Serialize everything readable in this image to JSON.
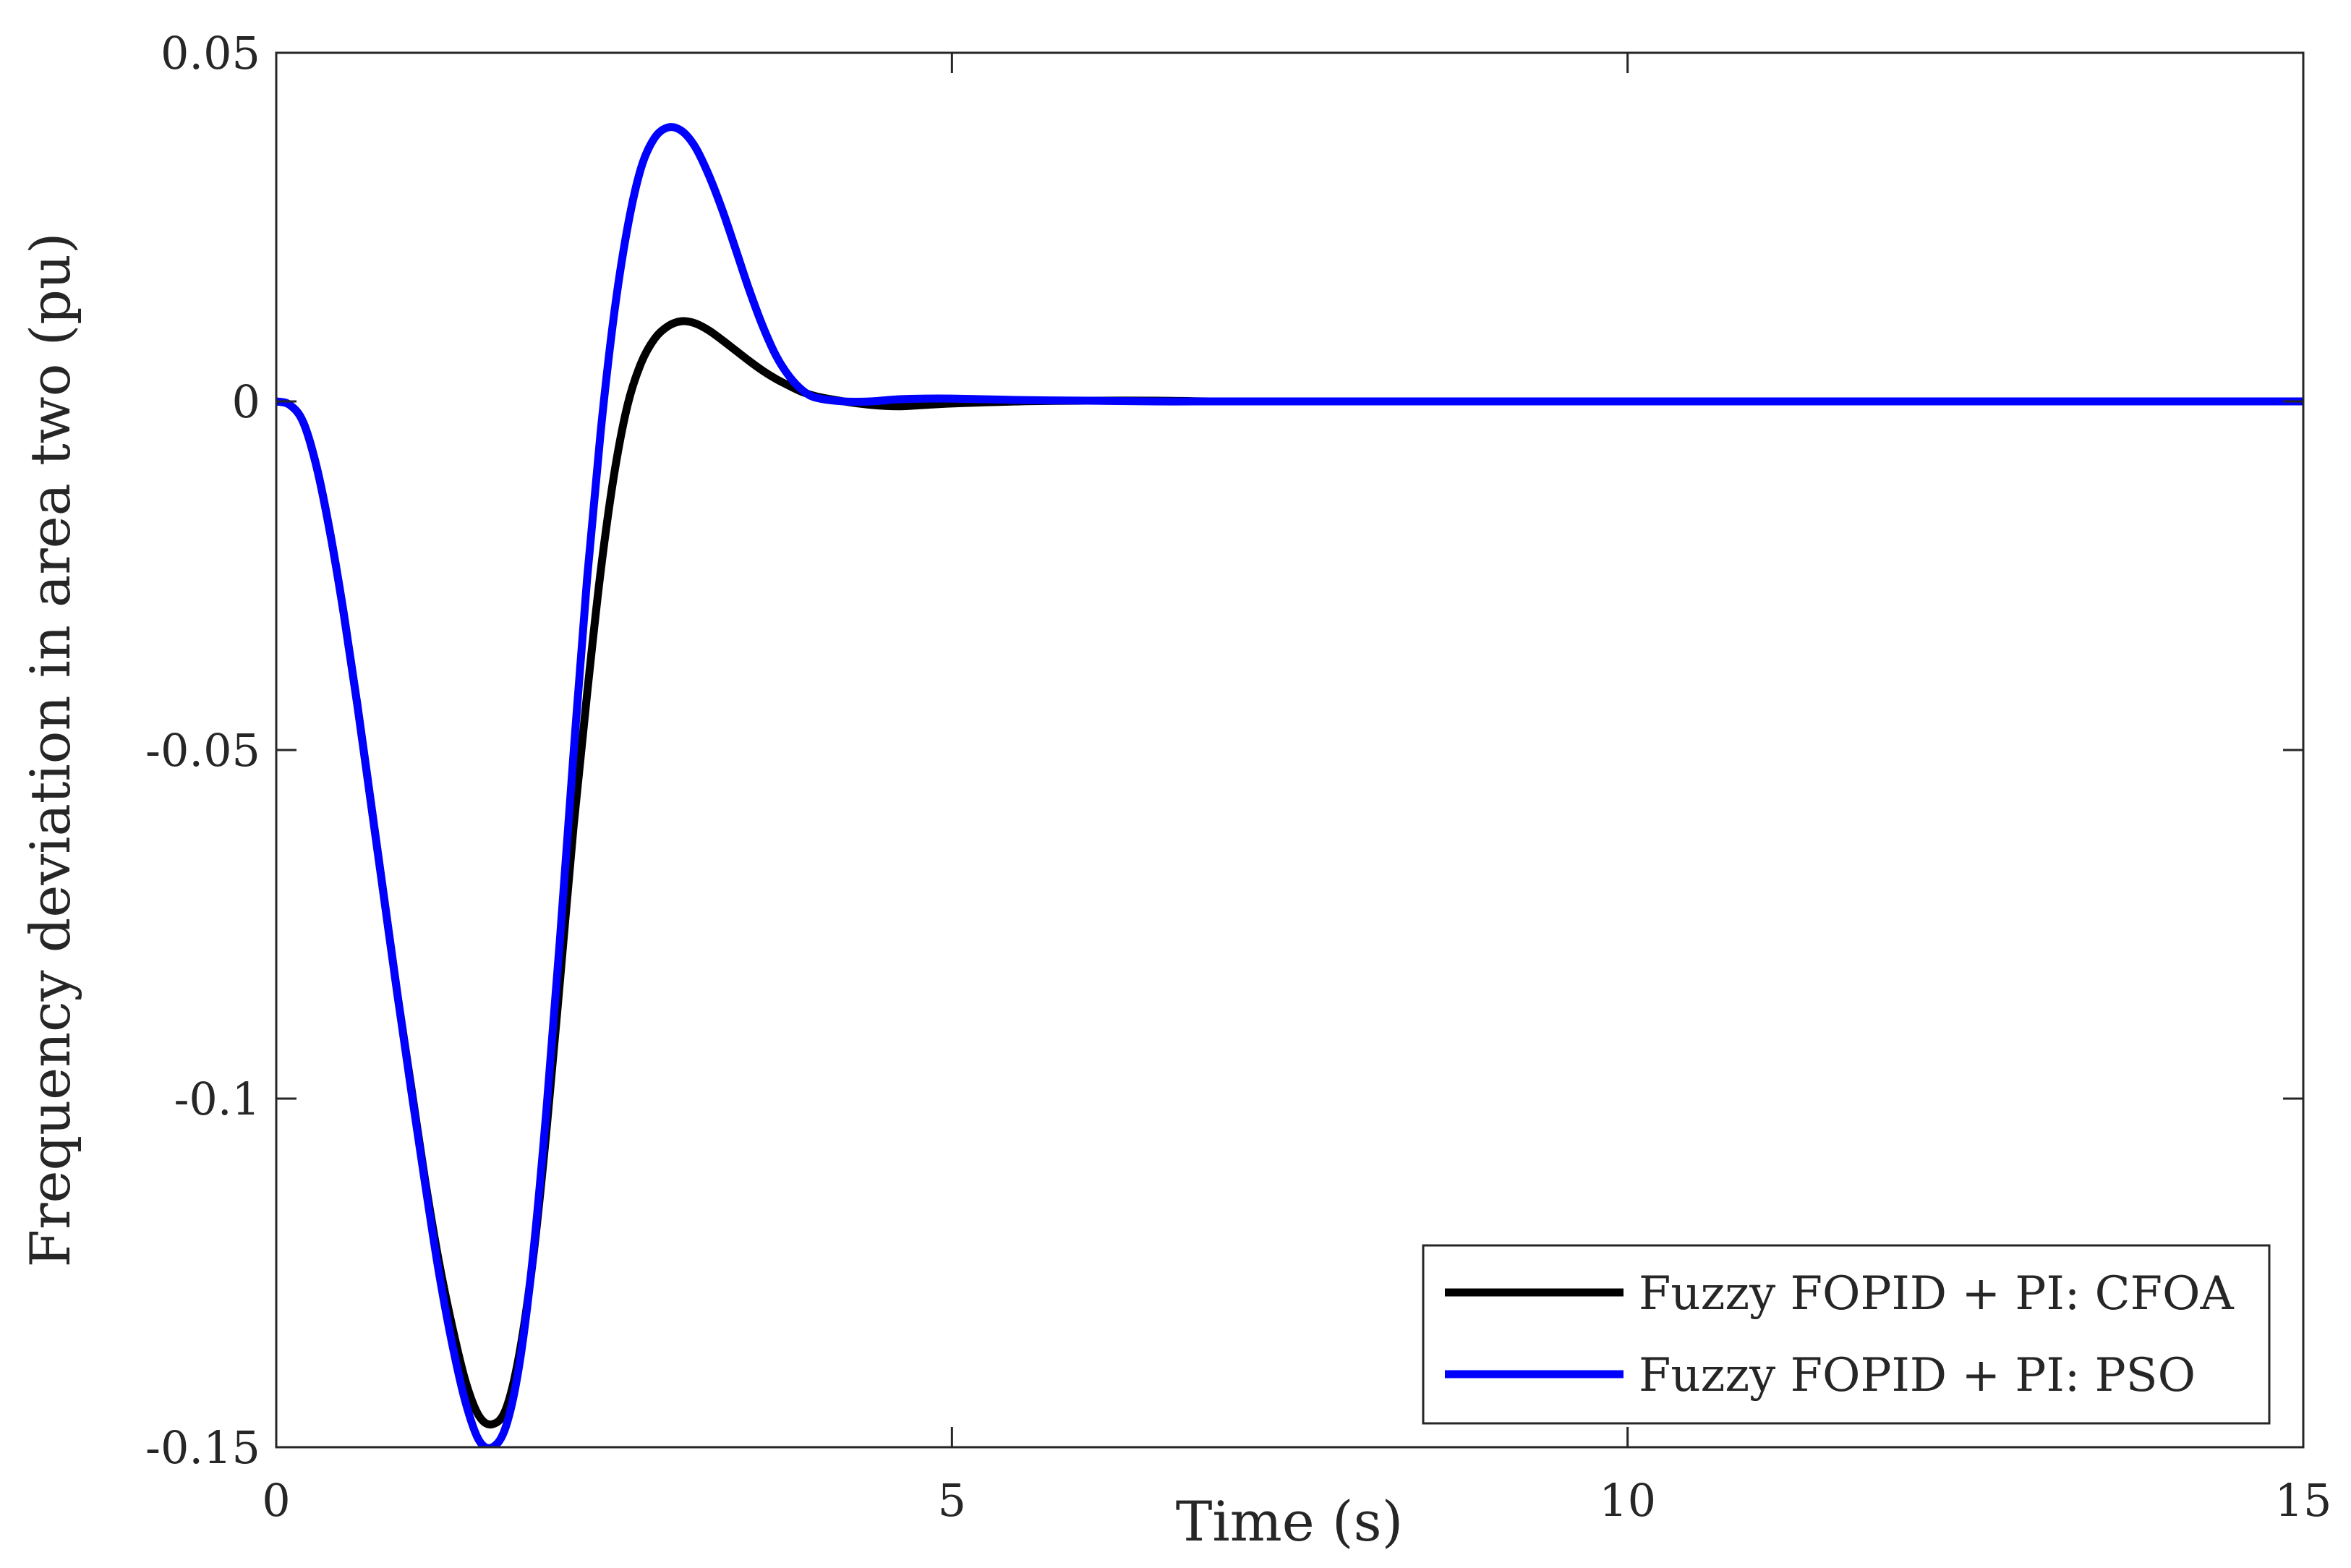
{
  "chart_data": {
    "type": "line",
    "title": "",
    "xlabel": "Time (s)",
    "ylabel": "Frequency deviation in area two (pu)",
    "xlim": [
      0,
      15
    ],
    "ylim": [
      -0.15,
      0.05
    ],
    "xticks": [
      0,
      5,
      10,
      15
    ],
    "xtick_labels": [
      "0",
      "5",
      "10",
      "15"
    ],
    "yticks": [
      -0.15,
      -0.1,
      -0.05,
      0,
      0.05
    ],
    "ytick_labels": [
      "-0.15",
      "-0.1",
      "-0.05",
      "0",
      "0.05"
    ],
    "grid": false,
    "legend_position": "bottom-right",
    "series": [
      {
        "name": "Fuzzy FOPID + PI: CFOA",
        "color": "#000000",
        "x": [
          0,
          0.1,
          0.2,
          0.3,
          0.4,
          0.5,
          0.6,
          0.7,
          0.8,
          0.9,
          1.0,
          1.1,
          1.2,
          1.3,
          1.4,
          1.5,
          1.6,
          1.7,
          1.8,
          1.9,
          2.0,
          2.1,
          2.2,
          2.3,
          2.4,
          2.5,
          2.6,
          2.7,
          2.8,
          2.9,
          3.0,
          3.1,
          3.2,
          3.3,
          3.4,
          3.5,
          3.6,
          3.7,
          3.8,
          3.9,
          4.0,
          4.2,
          4.4,
          4.6,
          4.8,
          5.0,
          5.5,
          6.0,
          6.5,
          7.0,
          8.0,
          9.0,
          10.0,
          11.0,
          12.0,
          13.0,
          14.0,
          15.0
        ],
        "y": [
          0,
          -0.0005,
          -0.003,
          -0.0095,
          -0.019,
          -0.0305,
          -0.0435,
          -0.0575,
          -0.0715,
          -0.0855,
          -0.0985,
          -0.1115,
          -0.123,
          -0.1325,
          -0.1405,
          -0.1455,
          -0.1467,
          -0.1445,
          -0.1365,
          -0.123,
          -0.1045,
          -0.083,
          -0.061,
          -0.042,
          -0.0245,
          -0.0105,
          -0.0005,
          0.0055,
          0.009,
          0.0108,
          0.0115,
          0.0112,
          0.0102,
          0.0088,
          0.0073,
          0.0058,
          0.0044,
          0.0032,
          0.0022,
          0.0013,
          0.0007,
          0.0,
          -0.0005,
          -0.0007,
          -0.0005,
          -0.0003,
          0.0,
          0.0001,
          0.0001,
          0.0,
          0.0,
          0.0,
          0.0,
          0.0,
          0.0,
          0.0,
          0.0,
          0.0
        ]
      },
      {
        "name": "Fuzzy FOPID + PI: PSO",
        "color": "#0000ff",
        "x": [
          0,
          0.1,
          0.2,
          0.3,
          0.4,
          0.5,
          0.6,
          0.7,
          0.8,
          0.9,
          1.0,
          1.1,
          1.2,
          1.3,
          1.4,
          1.5,
          1.6,
          1.7,
          1.8,
          1.9,
          2.0,
          2.1,
          2.2,
          2.3,
          2.4,
          2.5,
          2.6,
          2.7,
          2.8,
          2.9,
          3.0,
          3.1,
          3.2,
          3.3,
          3.4,
          3.5,
          3.6,
          3.7,
          3.8,
          3.9,
          4.0,
          4.2,
          4.4,
          4.6,
          4.8,
          5.0,
          5.5,
          6.0,
          6.5,
          7.0,
          8.0,
          9.0,
          10.0,
          11.0,
          12.0,
          13.0,
          14.0,
          15.0
        ],
        "y": [
          0,
          -0.0005,
          -0.003,
          -0.0095,
          -0.019,
          -0.0305,
          -0.0435,
          -0.0575,
          -0.0715,
          -0.0855,
          -0.099,
          -0.112,
          -0.1245,
          -0.135,
          -0.1435,
          -0.149,
          -0.15,
          -0.147,
          -0.138,
          -0.1225,
          -0.1015,
          -0.077,
          -0.0505,
          -0.0255,
          -0.0045,
          0.0125,
          0.025,
          0.0335,
          0.0378,
          0.0393,
          0.0388,
          0.0365,
          0.0325,
          0.0275,
          0.0218,
          0.016,
          0.0108,
          0.0065,
          0.0035,
          0.0015,
          0.0005,
          0.0,
          0.0,
          0.0003,
          0.0004,
          0.0004,
          0.0002,
          0.0001,
          0.0,
          0.0,
          0.0,
          0.0,
          0.0,
          0.0,
          0.0,
          0.0,
          0.0,
          0.0
        ]
      }
    ]
  }
}
